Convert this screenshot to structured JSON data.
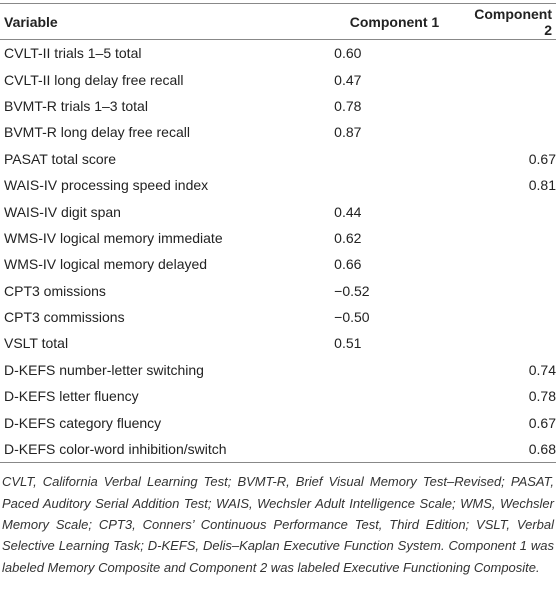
{
  "table": {
    "header": [
      "Variable",
      "Component 1",
      "Component 2"
    ],
    "rows": [
      {
        "variable": "CVLT-II trials 1–5 total",
        "component_1": "0.60"
      },
      {
        "variable": "CVLT-II long delay free recall",
        "component_1": "0.47"
      },
      {
        "variable": "BVMT-R trials 1–3 total",
        "component_1": "0.78"
      },
      {
        "variable": "BVMT-R long delay free recall",
        "component_1": "0.87"
      },
      {
        "variable": "PASAT total score",
        "component_2": "0.67"
      },
      {
        "variable": "WAIS-IV processing speed index",
        "component_2": "0.81"
      },
      {
        "variable": "WAIS-IV digit span",
        "component_1": "0.44"
      },
      {
        "variable": "WMS-IV logical memory immediate",
        "component_1": "0.62"
      },
      {
        "variable": "WMS-IV logical memory delayed",
        "component_1": "0.66"
      },
      {
        "variable": "CPT3 omissions",
        "component_1": "−0.52"
      },
      {
        "variable": "CPT3 commissions",
        "component_1": "−0.50"
      },
      {
        "variable": "VSLT total",
        "component_1": "0.51"
      },
      {
        "variable": "D-KEFS number-letter switching",
        "component_2": "0.74"
      },
      {
        "variable": "D-KEFS letter fluency",
        "component_2": "0.78"
      },
      {
        "variable": "D-KEFS category fluency",
        "component_2": "0.67"
      },
      {
        "variable": "D-KEFS color-word inhibition/switch",
        "component_2": "0.68"
      }
    ],
    "footnote": "CVLT, California Verbal Learning Test; BVMT-R, Brief Visual Memory Test–Revised; PASAT, Paced Auditory Serial Addition Test; WAIS, Wechsler Adult Intelligence Scale; WMS, Wechsler Memory Scale; CPT3, Conners’ Continuous Performance Test, Third Edition; VSLT, Verbal Selective Learning Task; D-KEFS, Delis–Kaplan Executive Function System. Component 1 was labeled Memory Composite and Component 2 was labeled Executive Functioning Composite."
  }
}
